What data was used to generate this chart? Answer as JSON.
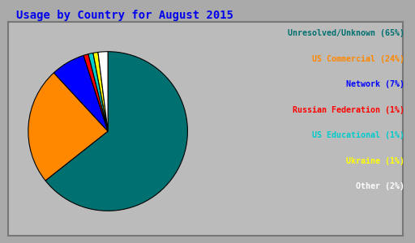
{
  "title": "Usage by Country for August 2015",
  "title_color": "#0000ee",
  "title_fontsize": 10,
  "background_color": "#aaaaaa",
  "inner_bg_color": "#bbbbbb",
  "slices": [
    65,
    24,
    7,
    1,
    1,
    1,
    2
  ],
  "colors": [
    "#007070",
    "#ff8800",
    "#0000ff",
    "#ff0000",
    "#00cccc",
    "#ffff00",
    "#ffffff"
  ],
  "legend_labels": [
    "Unresolved/Unknown (65%)",
    "US Commercial (24%)",
    "Network (7%)",
    "Russian Federation (1%)",
    "US Educational (1%)",
    "Ukraine (1%)",
    "Other (2%)"
  ],
  "legend_colors": [
    "#007070",
    "#ff8800",
    "#0000ff",
    "#ff0000",
    "#00cccc",
    "#ffff00",
    "#ffffff"
  ],
  "font_family": "monospace",
  "startangle": 90
}
